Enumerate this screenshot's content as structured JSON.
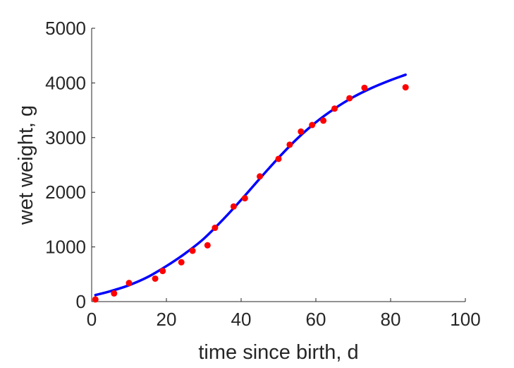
{
  "chart_data": {
    "type": "scatter",
    "title": "",
    "xlabel": "time since birth, d",
    "ylabel": "wet weight, g",
    "xlim": [
      0,
      100
    ],
    "ylim": [
      0,
      5000
    ],
    "xticks": [
      0,
      20,
      40,
      60,
      80,
      100
    ],
    "yticks": [
      0,
      1000,
      2000,
      3000,
      4000,
      5000
    ],
    "xtick_labels": [
      "0",
      "20",
      "40",
      "60",
      "80",
      "100"
    ],
    "ytick_labels": [
      "0",
      "1000",
      "2000",
      "3000",
      "4000",
      "5000"
    ],
    "grid": false,
    "box": false,
    "colors": {
      "points": "#ff0000",
      "curve": "#0000ff",
      "axis": "#262626"
    },
    "series": [
      {
        "kind": "points",
        "x": [
          1,
          6,
          10,
          17,
          19,
          24,
          27,
          31,
          33,
          38,
          41,
          45,
          50,
          53,
          56,
          59,
          62,
          65,
          69,
          73,
          84
        ],
        "y": [
          40,
          150,
          340,
          420,
          560,
          720,
          930,
          1030,
          1350,
          1740,
          1890,
          2290,
          2610,
          2870,
          3110,
          3230,
          3310,
          3530,
          3720,
          3910,
          3920
        ]
      },
      {
        "kind": "line",
        "x": [
          1,
          5,
          10,
          15,
          20,
          25,
          30,
          35,
          40,
          45,
          50,
          55,
          60,
          65,
          70,
          75,
          80,
          84
        ],
        "y": [
          120,
          190,
          300,
          450,
          650,
          880,
          1150,
          1490,
          1860,
          2250,
          2630,
          2980,
          3280,
          3530,
          3740,
          3910,
          4050,
          4150
        ]
      }
    ]
  }
}
